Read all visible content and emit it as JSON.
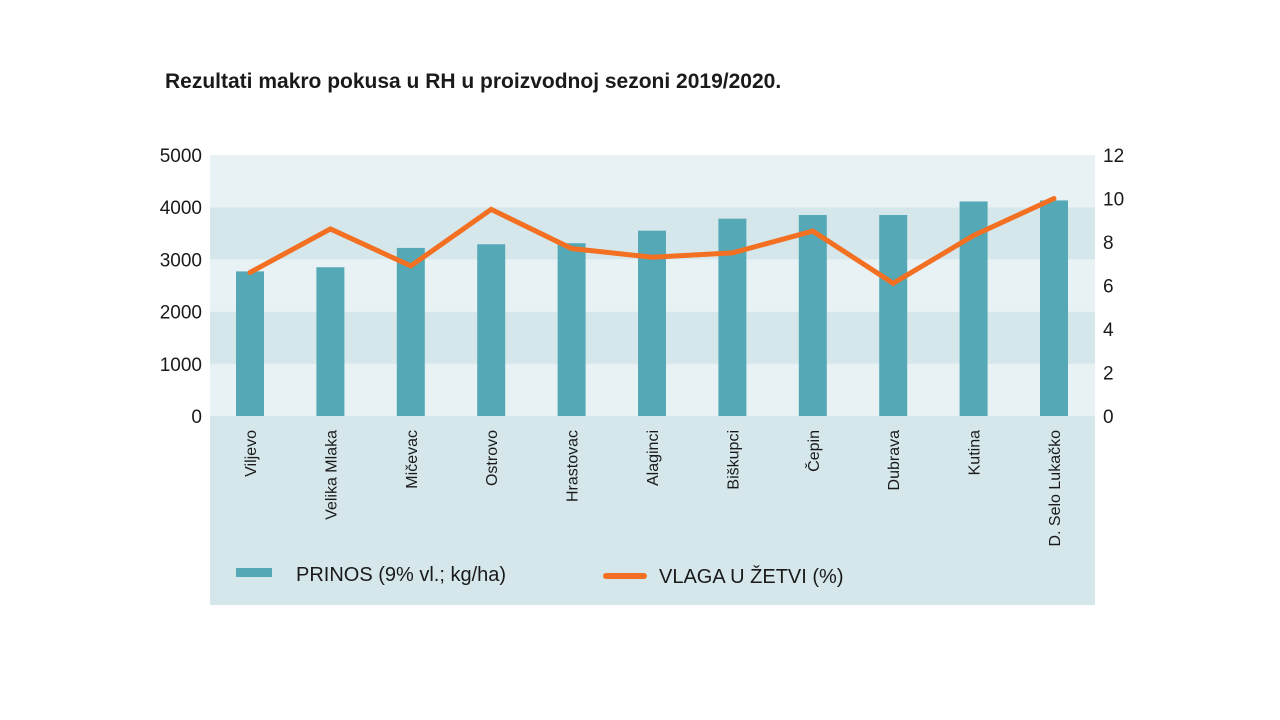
{
  "title": "Rezultati makro pokusa u RH u proizvodnoj sezoni 2019/2020.",
  "chart_data": {
    "type": "bar",
    "title": "Rezultati makro pokusa u RH u proizvodnoj sezoni 2019/2020.",
    "categories": [
      "Viljevo",
      "Velika Mlaka",
      "Mičevac",
      "Ostrovo",
      "Hrastovac",
      "Alaginci",
      "Biškupci",
      "Čepin",
      "Dubrava",
      "Kutina",
      "D. Selo Lukačko"
    ],
    "series": [
      {
        "name": "PRINOS (9% vl.; kg/ha)",
        "type": "bar",
        "axis": "left",
        "color": "#55a9b6",
        "values": [
          2770,
          2850,
          3220,
          3290,
          3310,
          3550,
          3780,
          3850,
          3850,
          4110,
          4130
        ]
      },
      {
        "name": "VLAGA U ŽETVI (%)",
        "type": "line",
        "axis": "right",
        "color": "#f36f21",
        "values": [
          6.6,
          8.6,
          6.9,
          9.5,
          7.7,
          7.3,
          7.5,
          8.5,
          6.1,
          8.3,
          10.0
        ]
      }
    ],
    "y_left": {
      "range": [
        0,
        5000
      ],
      "ticks": [
        "0",
        "1000",
        "2000",
        "3000",
        "4000",
        "5000"
      ]
    },
    "y_right": {
      "range": [
        0,
        12
      ],
      "ticks": [
        "0",
        "2",
        "4",
        "6",
        "8",
        "10",
        "12"
      ]
    },
    "grid": "horizontal bands",
    "legend_position": "bottom"
  },
  "colors": {
    "band_light": "#e8f2f4",
    "band_dark": "#d5e7eb",
    "legend_bg": "#d5e7eb",
    "bar": "#55a9b6",
    "line": "#f36f21"
  }
}
